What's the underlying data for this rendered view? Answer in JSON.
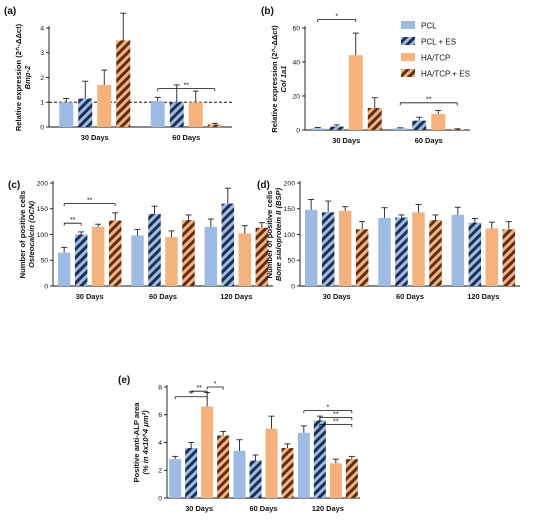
{
  "colors": {
    "pcl": "#9dbbe3",
    "pcl_es_stripe": "#1f2f52",
    "hatcp": "#f5b27c",
    "hatcp_es_stripe": "#5a3018",
    "error": "#222222"
  },
  "legend": {
    "placement": "top-right",
    "items": [
      {
        "label": "PCL",
        "style": "solid-blue"
      },
      {
        "label": "PCL + ES",
        "style": "striped-blue"
      },
      {
        "label": "HA/TCP",
        "style": "solid-orange"
      },
      {
        "label": "HA/TCP + ES",
        "style": "striped-orange"
      }
    ]
  },
  "chart_data": [
    {
      "panel": "(a)",
      "type": "bar",
      "ylabel_line1": "Relative expression (2^-ΔΔct)",
      "ylabel_line2": "Bmp-2",
      "ylim": [
        0,
        4
      ],
      "yticks": [
        0,
        1,
        2,
        3,
        4
      ],
      "reference_line": 1,
      "categories": [
        "30 Days",
        "60 Days"
      ],
      "series": [
        {
          "name": "PCL",
          "values": [
            1.0,
            1.05
          ],
          "errors": [
            0.15,
            0.15
          ]
        },
        {
          "name": "PCL + ES",
          "values": [
            1.15,
            1.0
          ],
          "errors": [
            0.7,
            0.7
          ]
        },
        {
          "name": "HA/TCP",
          "values": [
            1.7,
            1.0
          ],
          "errors": [
            0.6,
            0.45
          ]
        },
        {
          "name": "HA/TCP + ES",
          "values": [
            3.5,
            0.1
          ],
          "errors": [
            1.1,
            0.05
          ]
        }
      ],
      "significance": [
        {
          "label": "**",
          "cat": 1,
          "from": 0,
          "to": 3,
          "y": 1.55
        }
      ]
    },
    {
      "panel": "(b)",
      "type": "bar",
      "ylabel_line1": "Relative expression (2^-ΔΔct)",
      "ylabel_line2": "Col 1a1",
      "ylim": [
        0,
        60
      ],
      "yticks": [
        0,
        20,
        40,
        60
      ],
      "categories": [
        "30 Days",
        "60 Days"
      ],
      "series": [
        {
          "name": "PCL",
          "values": [
            1.0,
            1.0
          ],
          "errors": [
            0.5,
            0.3
          ]
        },
        {
          "name": "PCL + ES",
          "values": [
            2.0,
            5.5
          ],
          "errors": [
            1.0,
            2.0
          ]
        },
        {
          "name": "HA/TCP",
          "values": [
            44.0,
            9.5
          ],
          "errors": [
            13.0,
            2.0
          ]
        },
        {
          "name": "HA/TCP + ES",
          "values": [
            13.0,
            0.5
          ],
          "errors": [
            6.0,
            0.2
          ]
        }
      ],
      "significance": [
        {
          "label": "*",
          "cat": 0,
          "from": 0,
          "to": 2,
          "y": 65
        },
        {
          "label": "**",
          "cat": 1,
          "from": 0,
          "to": 3,
          "y": 16
        }
      ]
    },
    {
      "panel": "(c)",
      "type": "bar",
      "ylabel_line1": "Number of positive cells",
      "ylabel_line2": "Osteocalcin (OCN)",
      "ylim": [
        0,
        200
      ],
      "yticks": [
        0,
        50,
        100,
        150,
        200
      ],
      "categories": [
        "30 Days",
        "60 Days",
        "120 Days"
      ],
      "series": [
        {
          "name": "PCL",
          "values": [
            65,
            98,
            115
          ],
          "errors": [
            10,
            12,
            15
          ]
        },
        {
          "name": "PCL + ES",
          "values": [
            100,
            140,
            160
          ],
          "errors": [
            5,
            15,
            30
          ]
        },
        {
          "name": "HA/TCP",
          "values": [
            115,
            95,
            102
          ],
          "errors": [
            5,
            12,
            15
          ]
        },
        {
          "name": "HA/TCP + ES",
          "values": [
            127,
            128,
            113
          ],
          "errors": [
            15,
            10,
            10
          ]
        }
      ],
      "significance": [
        {
          "label": "**",
          "cat": 0,
          "from": 0,
          "to": 3,
          "y": 160
        },
        {
          "label": "**",
          "cat": 0,
          "from": 0,
          "to": 1,
          "y": 122
        }
      ]
    },
    {
      "panel": "(d)",
      "type": "bar",
      "ylabel_line1": "Number of positive cells",
      "ylabel_line2": "Bone sialoprotein II (BSP)",
      "ylim": [
        0,
        200
      ],
      "yticks": [
        0,
        50,
        100,
        150,
        200
      ],
      "categories": [
        "30 Days",
        "60 Days",
        "120 Days"
      ],
      "series": [
        {
          "name": "PCL",
          "values": [
            148,
            132,
            138
          ],
          "errors": [
            20,
            20,
            15
          ]
        },
        {
          "name": "PCL + ES",
          "values": [
            143,
            133,
            123
          ],
          "errors": [
            22,
            5,
            8
          ]
        },
        {
          "name": "HA/TCP",
          "values": [
            146,
            143,
            112
          ],
          "errors": [
            8,
            15,
            12
          ]
        },
        {
          "name": "HA/TCP + ES",
          "values": [
            110,
            128,
            110
          ],
          "errors": [
            15,
            10,
            15
          ]
        }
      ],
      "significance": []
    },
    {
      "panel": "(e)",
      "type": "bar",
      "ylabel_line1": "Positive anti-ALP area",
      "ylabel_line2": "(% in 4x10^4 μm²)",
      "ylim": [
        0,
        8
      ],
      "yticks": [
        0,
        2,
        4,
        6,
        8
      ],
      "categories": [
        "30 Days",
        "60 Days",
        "120 Days"
      ],
      "series": [
        {
          "name": "PCL",
          "values": [
            2.8,
            3.4,
            4.7
          ],
          "errors": [
            0.2,
            0.8,
            0.5
          ]
        },
        {
          "name": "PCL + ES",
          "values": [
            3.6,
            2.7,
            5.6
          ],
          "errors": [
            0.4,
            0.4,
            0.3
          ]
        },
        {
          "name": "HA/TCP",
          "values": [
            6.6,
            5.0,
            2.5
          ],
          "errors": [
            1.0,
            0.9,
            0.3
          ]
        },
        {
          "name": "HA/TCP + ES",
          "values": [
            4.5,
            3.6,
            2.8
          ],
          "errors": [
            0.3,
            0.3,
            0.2
          ]
        }
      ],
      "significance": [
        {
          "label": "*",
          "cat": 0,
          "from": 2,
          "to": 3,
          "y": 8.0
        },
        {
          "label": "**",
          "cat": 0,
          "from": 1,
          "to": 2,
          "y": 7.7
        },
        {
          "label": "**",
          "cat": 0,
          "from": 0,
          "to": 2,
          "y": 7.3
        },
        {
          "label": "*",
          "cat": 2,
          "from": 0,
          "to": 3,
          "y": 6.3
        },
        {
          "label": "**",
          "cat": 2,
          "from": 1,
          "to": 3,
          "y": 5.8
        },
        {
          "label": "**",
          "cat": 2,
          "from": 1,
          "to": 3,
          "y": 5.3
        }
      ]
    }
  ]
}
